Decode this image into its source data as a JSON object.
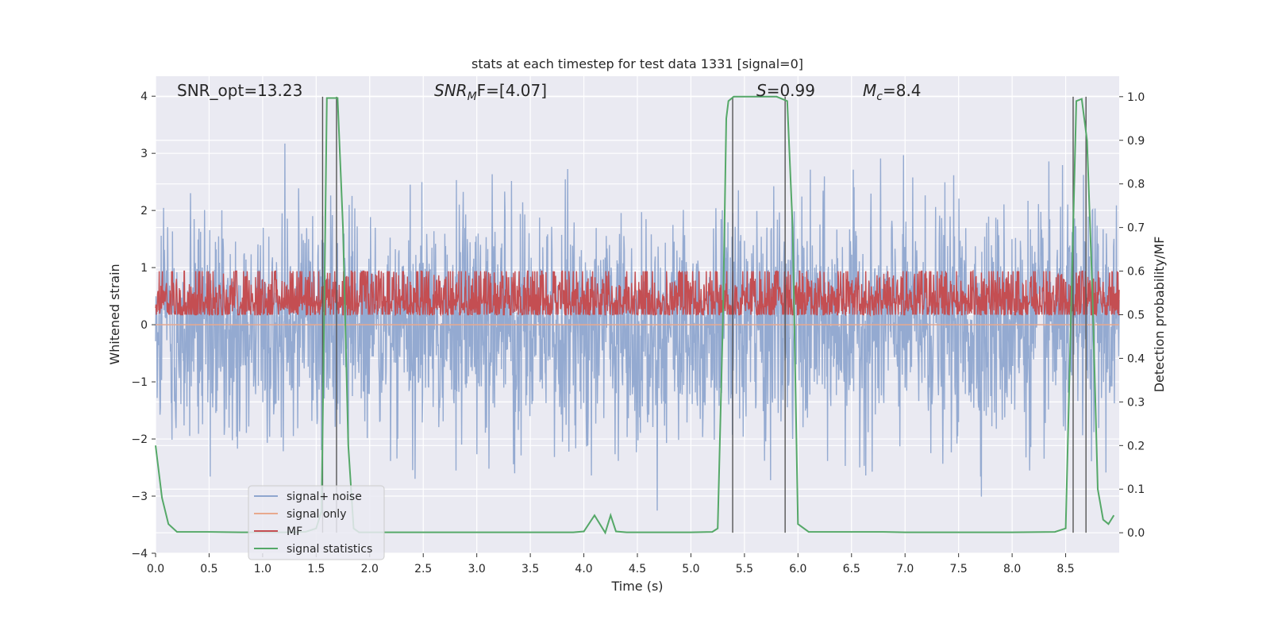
{
  "chart_data": {
    "type": "line",
    "title": "stats at each timestep for test data 1331 [signal=0]",
    "xlabel": "Time (s)",
    "ylabel": "Whitened strain",
    "y2label": "Detection probability/MF",
    "xlim": [
      0.0,
      9.0
    ],
    "ylim": [
      -4,
      4.35
    ],
    "y2lim": [
      -0.047,
      1.047
    ],
    "xticks": [
      "0.0",
      "0.5",
      "1.0",
      "1.5",
      "2.0",
      "2.5",
      "3.0",
      "3.5",
      "4.0",
      "4.5",
      "5.0",
      "5.5",
      "6.0",
      "6.5",
      "7.0",
      "7.5",
      "8.0",
      "8.5"
    ],
    "yticks": [
      "−4",
      "−3",
      "−2",
      "−1",
      "0",
      "1",
      "2",
      "3",
      "4"
    ],
    "y2ticks": [
      "0.0",
      "0.1",
      "0.2",
      "0.3",
      "0.4",
      "0.5",
      "0.6",
      "0.7",
      "0.8",
      "0.9",
      "1.0"
    ],
    "annotations": {
      "snr_opt": "SNR_opt=13.23",
      "snr_mf_main": "SNR",
      "snr_mf_sub": "M",
      "snr_mf_rest": "F=[4.07]",
      "s_main": "S",
      "s_rest": "=0.99",
      "mc_main": "M",
      "mc_sub": "c",
      "mc_rest": "=8.4"
    },
    "legend": {
      "placement": "lower-left",
      "entries": [
        {
          "label": "signal+ noise",
          "color": "#8fa6cf"
        },
        {
          "label": "signal only",
          "color": "#e8a98e"
        },
        {
          "label": "MF",
          "color": "#c44e52"
        },
        {
          "label": "signal statistics",
          "color": "#55a868"
        }
      ]
    },
    "series": [
      {
        "name": "signal+ noise",
        "kind": "noise",
        "sigma": 1.0,
        "color": "#8fa6cf"
      },
      {
        "name": "signal only",
        "kind": "flat",
        "value": 0.0,
        "color": "#e8a98e"
      },
      {
        "name": "MF",
        "kind": "noise",
        "axis": "y2",
        "center": 0.53,
        "spread": 0.05,
        "color": "#c44e52"
      },
      {
        "name": "signal statistics",
        "axis": "y2",
        "color": "#55a868",
        "x": [
          0.0,
          0.06,
          0.12,
          0.2,
          0.5,
          0.8,
          1.0,
          1.2,
          1.4,
          1.5,
          1.55,
          1.58,
          1.6,
          1.65,
          1.7,
          1.75,
          1.8,
          1.85,
          1.9,
          2.0,
          3.0,
          3.9,
          4.0,
          4.1,
          4.2,
          4.25,
          4.3,
          4.4,
          5.0,
          5.2,
          5.25,
          5.3,
          5.33,
          5.35,
          5.4,
          5.45,
          5.5,
          5.8,
          5.9,
          5.95,
          6.0,
          6.1,
          6.8,
          7.0,
          8.0,
          8.4,
          8.5,
          8.55,
          8.6,
          8.65,
          8.7,
          8.75,
          8.8,
          8.85,
          8.9,
          8.95
        ],
        "y": [
          0.2,
          0.08,
          0.02,
          0.002,
          0.002,
          0.001,
          0.001,
          0.001,
          0.002,
          0.01,
          0.05,
          0.6,
          0.997,
          0.997,
          0.997,
          0.7,
          0.2,
          0.01,
          0.001,
          0.001,
          0.001,
          0.001,
          0.003,
          0.04,
          0.0,
          0.04,
          0.003,
          0.001,
          0.001,
          0.002,
          0.01,
          0.5,
          0.95,
          0.99,
          1.0,
          1.0,
          1.0,
          1.0,
          0.99,
          0.7,
          0.02,
          0.002,
          0.002,
          0.001,
          0.001,
          0.002,
          0.01,
          0.5,
          0.99,
          0.995,
          0.9,
          0.55,
          0.1,
          0.03,
          0.02,
          0.04
        ]
      },
      {
        "name": "detection markers",
        "kind": "vlines",
        "x": [
          1.56,
          1.69,
          5.39,
          5.88,
          8.57,
          8.69
        ],
        "color": "#555555"
      }
    ]
  }
}
